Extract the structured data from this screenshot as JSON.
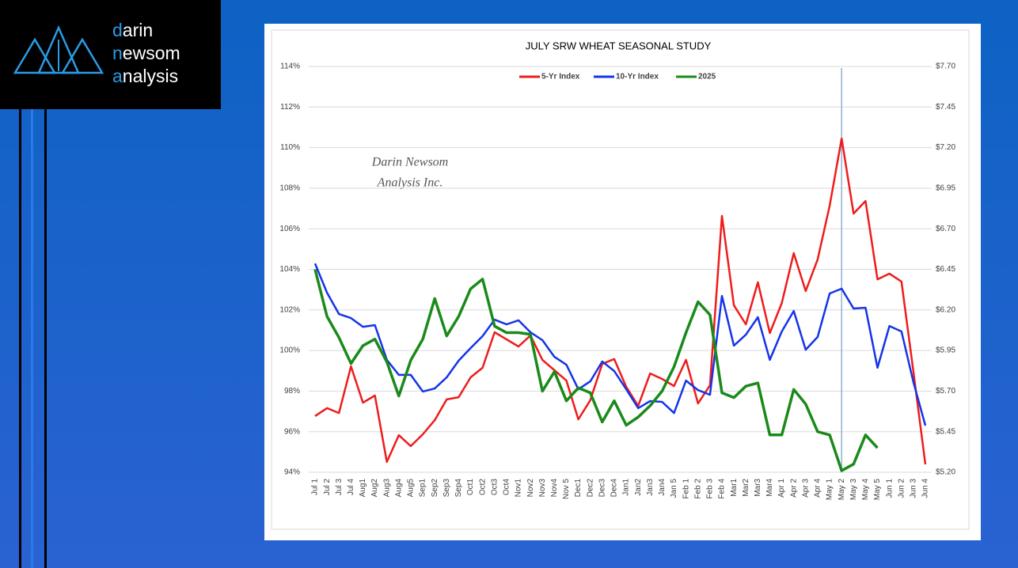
{
  "logo": [
    "darin",
    "newsom",
    "analysis"
  ],
  "chart_data": {
    "type": "line",
    "title": "JULY SRW WHEAT SEASONAL STUDY",
    "annotation": [
      "Darin Newsom",
      "Analysis Inc."
    ],
    "marker": "May 2",
    "legend": "top",
    "categories": [
      "Jul 1",
      "Jul 2",
      "Jul 3",
      "Jul 4",
      "Aug1",
      "Aug2",
      "Aug3",
      "Aug4",
      "Aug5",
      "Sep1",
      "Sep2",
      "Sep3",
      "Sep4",
      "Oct1",
      "Oct2",
      "Oct3",
      "Oct4",
      "Nov1",
      "Nov2",
      "Nov3",
      "Nov4",
      "Nov 5",
      "Dec1",
      "Dec2",
      "Dec3",
      "Dec4",
      "Jan1",
      "Jan2",
      "Jan3",
      "Jan4",
      "Jan 5",
      "Feb 1",
      "Feb 2",
      "Feb 3",
      "Feb 4",
      "Mar1",
      "Mar2",
      "Mar3",
      "Mar4",
      "Apr 1",
      "Apr 2",
      "Apr 3",
      "Apr 4",
      "May 1",
      "May 2",
      "May 3",
      "May 4",
      "May 5",
      "Jun 1",
      "Jun 2",
      "Jun 3",
      "Jun 4"
    ],
    "series": [
      {
        "name": "5-Yr Index",
        "color": "#ee1c1c",
        "values": [
          96.77,
          97.16,
          96.92,
          99.22,
          97.43,
          97.78,
          94.51,
          95.83,
          95.29,
          95.87,
          96.57,
          97.59,
          97.7,
          98.68,
          99.15,
          100.9,
          100.55,
          100.2,
          100.74,
          99.54,
          99.03,
          98.52,
          96.61,
          97.55,
          99.34,
          99.58,
          98.21,
          97.27,
          98.87,
          98.6,
          98.25,
          99.54,
          97.39,
          98.29,
          106.63,
          102.23,
          101.29,
          103.36,
          100.86,
          102.34,
          104.8,
          102.93,
          104.49,
          107.14,
          110.45,
          106.75,
          107.37,
          103.51,
          103.79,
          103.4,
          98.95,
          94.39
        ]
      },
      {
        "name": "10-Yr Index",
        "color": "#1434e8",
        "values": [
          104.29,
          102.85,
          101.8,
          101.6,
          101.17,
          101.25,
          99.54,
          98.8,
          98.8,
          97.98,
          98.13,
          98.68,
          99.5,
          100.12,
          100.71,
          101.52,
          101.29,
          101.49,
          100.9,
          100.51,
          99.69,
          99.3,
          98.09,
          98.48,
          99.46,
          98.99,
          98.09,
          97.16,
          97.51,
          97.47,
          96.92,
          98.52,
          98.05,
          97.82,
          102.69,
          100.24,
          100.78,
          101.64,
          99.54,
          100.94,
          101.95,
          100.04,
          100.67,
          102.81,
          103.05,
          102.07,
          102.11,
          99.15,
          101.21,
          100.94,
          98.44,
          96.3
        ]
      },
      {
        "name": "2025",
        "color": "#1a8a1a",
        "axis": "y2",
        "values": [
          6.45,
          6.16,
          6.03,
          5.87,
          5.98,
          6.02,
          5.88,
          5.67,
          5.89,
          6.02,
          6.27,
          6.04,
          6.16,
          6.33,
          6.39,
          6.1,
          6.06,
          6.06,
          6.05,
          5.7,
          5.82,
          5.64,
          5.72,
          5.69,
          5.51,
          5.64,
          5.49,
          5.54,
          5.61,
          5.7,
          5.85,
          6.06,
          6.25,
          6.17,
          5.69,
          5.66,
          5.73,
          5.75,
          5.43,
          5.43,
          5.71,
          5.62,
          5.45,
          5.43,
          5.21,
          5.25,
          5.43,
          5.35,
          null,
          null,
          null,
          null
        ]
      }
    ],
    "ylim": [
      94,
      114
    ],
    "yticks": [
      {
        "value": 94,
        "label": "94%"
      },
      {
        "value": 96,
        "label": "96%"
      },
      {
        "value": 98,
        "label": "98%"
      },
      {
        "value": 100,
        "label": "100%"
      },
      {
        "value": 102,
        "label": "102%"
      },
      {
        "value": 104,
        "label": "104%"
      },
      {
        "value": 106,
        "label": "106%"
      },
      {
        "value": 108,
        "label": "108%"
      },
      {
        "value": 110,
        "label": "110%"
      },
      {
        "value": 112,
        "label": "112%"
      },
      {
        "value": 114,
        "label": "114%"
      }
    ],
    "y2lim": [
      5.2,
      7.7
    ],
    "y2ticks": [
      {
        "value": 5.2,
        "label": "$5.20"
      },
      {
        "value": 5.45,
        "label": "$5.45"
      },
      {
        "value": 5.7,
        "label": "$5.70"
      },
      {
        "value": 5.95,
        "label": "$5.95"
      },
      {
        "value": 6.2,
        "label": "$6.20"
      },
      {
        "value": 6.45,
        "label": "$6.45"
      },
      {
        "value": 6.7,
        "label": "$6.70"
      },
      {
        "value": 6.95,
        "label": "$6.95"
      },
      {
        "value": 7.2,
        "label": "$7.20"
      },
      {
        "value": 7.45,
        "label": "$7.45"
      },
      {
        "value": 7.7,
        "label": "$7.70"
      }
    ],
    "grid": true
  }
}
